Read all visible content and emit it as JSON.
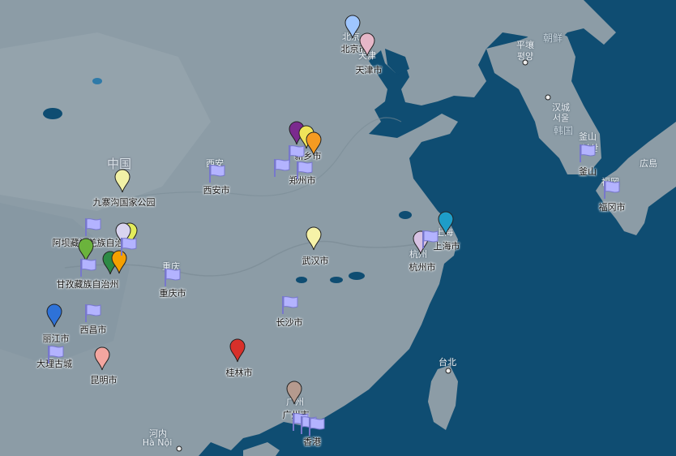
{
  "colors": {
    "sea": "#0f4d72",
    "land": "#8c9ca6",
    "flag_fill": "#b3b3ff",
    "flag_pole": "#7777cc"
  },
  "background_labels": [
    {
      "name": "beijing-en-label",
      "text": "北京"
    },
    {
      "name": "tianjin-en-label",
      "text": "天津"
    },
    {
      "name": "pyongyang-label",
      "text": "平壤"
    },
    {
      "name": "pyongyang-ko-label",
      "text": "평양"
    },
    {
      "name": "north-korea-label",
      "text": "朝鲜"
    },
    {
      "name": "seoul-label",
      "text": "汉城"
    },
    {
      "name": "seoul-ko-label",
      "text": "서울"
    },
    {
      "name": "south-korea-label",
      "text": "韩国"
    },
    {
      "name": "busan-label",
      "text": "釜山"
    },
    {
      "name": "busan-ko-label",
      "text": "부산"
    },
    {
      "name": "hiroshima-label",
      "text": "広島"
    },
    {
      "name": "fukuoka-label",
      "text": "福岡"
    },
    {
      "name": "china-label",
      "text": "中国"
    },
    {
      "name": "xian-bg-label",
      "text": "西安"
    },
    {
      "name": "chongqing-bg-label",
      "text": "重庆"
    },
    {
      "name": "shanghai-bg-label",
      "text": "上海"
    },
    {
      "name": "hangzhou-bg-label",
      "text": "杭州"
    },
    {
      "name": "taipei-label",
      "text": "台北"
    },
    {
      "name": "guangzhou-bg-label",
      "text": "广州"
    },
    {
      "name": "hanoi-label",
      "text": "河内"
    },
    {
      "name": "hanoi-vi-label",
      "text": "Hà Nội"
    }
  ],
  "place_labels": [
    {
      "name": "beijing-label",
      "text": "北京市"
    },
    {
      "name": "tianjin-label",
      "text": "天津市"
    },
    {
      "name": "xinxiang-label",
      "text": "新乡市"
    },
    {
      "name": "zhengzhou-label",
      "text": "郑州市"
    },
    {
      "name": "xian-label",
      "text": "西安市"
    },
    {
      "name": "jiuzhaigou-label",
      "text": "九寨沟国家公园"
    },
    {
      "name": "aba-label",
      "text": "阿坝藏族羌族自治州"
    },
    {
      "name": "ganzi-label",
      "text": "甘孜藏族自治州"
    },
    {
      "name": "chongqing-label",
      "text": "重庆市"
    },
    {
      "name": "wuhan-label",
      "text": "武汉市"
    },
    {
      "name": "shanghai-label",
      "text": "上海市"
    },
    {
      "name": "hangzhou-label",
      "text": "杭州市"
    },
    {
      "name": "changsha-label",
      "text": "长沙市"
    },
    {
      "name": "xichang-label",
      "text": "西昌市"
    },
    {
      "name": "lijiang-label",
      "text": "丽江市"
    },
    {
      "name": "dali-label",
      "text": "大理古城"
    },
    {
      "name": "kunming-label",
      "text": "昆明市"
    },
    {
      "name": "guilin-label",
      "text": "桂林市"
    },
    {
      "name": "guangzhou-label",
      "text": "广州市"
    },
    {
      "name": "hongkong-label",
      "text": "香港"
    },
    {
      "name": "busan-city-label",
      "text": "釜山"
    },
    {
      "name": "fukuoka-city-label",
      "text": "福冈市"
    }
  ],
  "pins": [
    {
      "name": "beijing-pin",
      "color": "#9fc6ff"
    },
    {
      "name": "tianjin-pin",
      "color": "#e6b7c8"
    },
    {
      "name": "xinxiang-purple-pin",
      "color": "#7b2a8e"
    },
    {
      "name": "xinxiang-yellow-pin",
      "color": "#f0e45a"
    },
    {
      "name": "xinxiang-orange-pin",
      "color": "#f59b22"
    },
    {
      "name": "jiuzhaigou-pin",
      "color": "#f1f1a6"
    },
    {
      "name": "aba-yellow-pin",
      "color": "#e3ec5a"
    },
    {
      "name": "aba-light-pin",
      "color": "#d9d4f0"
    },
    {
      "name": "ganzi-green-pin",
      "color": "#6bb33c"
    },
    {
      "name": "ganzi-darkgreen-pin",
      "color": "#2d8a45"
    },
    {
      "name": "ganzi-orange-pin",
      "color": "#f5a000"
    },
    {
      "name": "wuhan-pin",
      "color": "#f6f2a8"
    },
    {
      "name": "shanghai-pin",
      "color": "#1e9dc8"
    },
    {
      "name": "hangzhou-pin",
      "color": "#d7c2e3"
    },
    {
      "name": "lijiang-pin",
      "color": "#2e72d8"
    },
    {
      "name": "kunming-pin",
      "color": "#f4a6a0"
    },
    {
      "name": "guilin-pin",
      "color": "#d8302a"
    },
    {
      "name": "guangzhou-pin",
      "color": "#b59a8e"
    }
  ],
  "flags": [
    {
      "name": "xinxiang-flag"
    },
    {
      "name": "zhengzhou-flag-left"
    },
    {
      "name": "zhengzhou-flag-right"
    },
    {
      "name": "xian-flag"
    },
    {
      "name": "aba-flag"
    },
    {
      "name": "aba-flag-2"
    },
    {
      "name": "ganzi-flag"
    },
    {
      "name": "chongqing-flag"
    },
    {
      "name": "xichang-flag"
    },
    {
      "name": "dali-flag"
    },
    {
      "name": "changsha-flag"
    },
    {
      "name": "shanghai-flag"
    },
    {
      "name": "guangzhou-flag-1"
    },
    {
      "name": "guangzhou-flag-2"
    },
    {
      "name": "guangzhou-flag-3"
    },
    {
      "name": "busan-flag"
    },
    {
      "name": "fukuoka-flag"
    }
  ]
}
